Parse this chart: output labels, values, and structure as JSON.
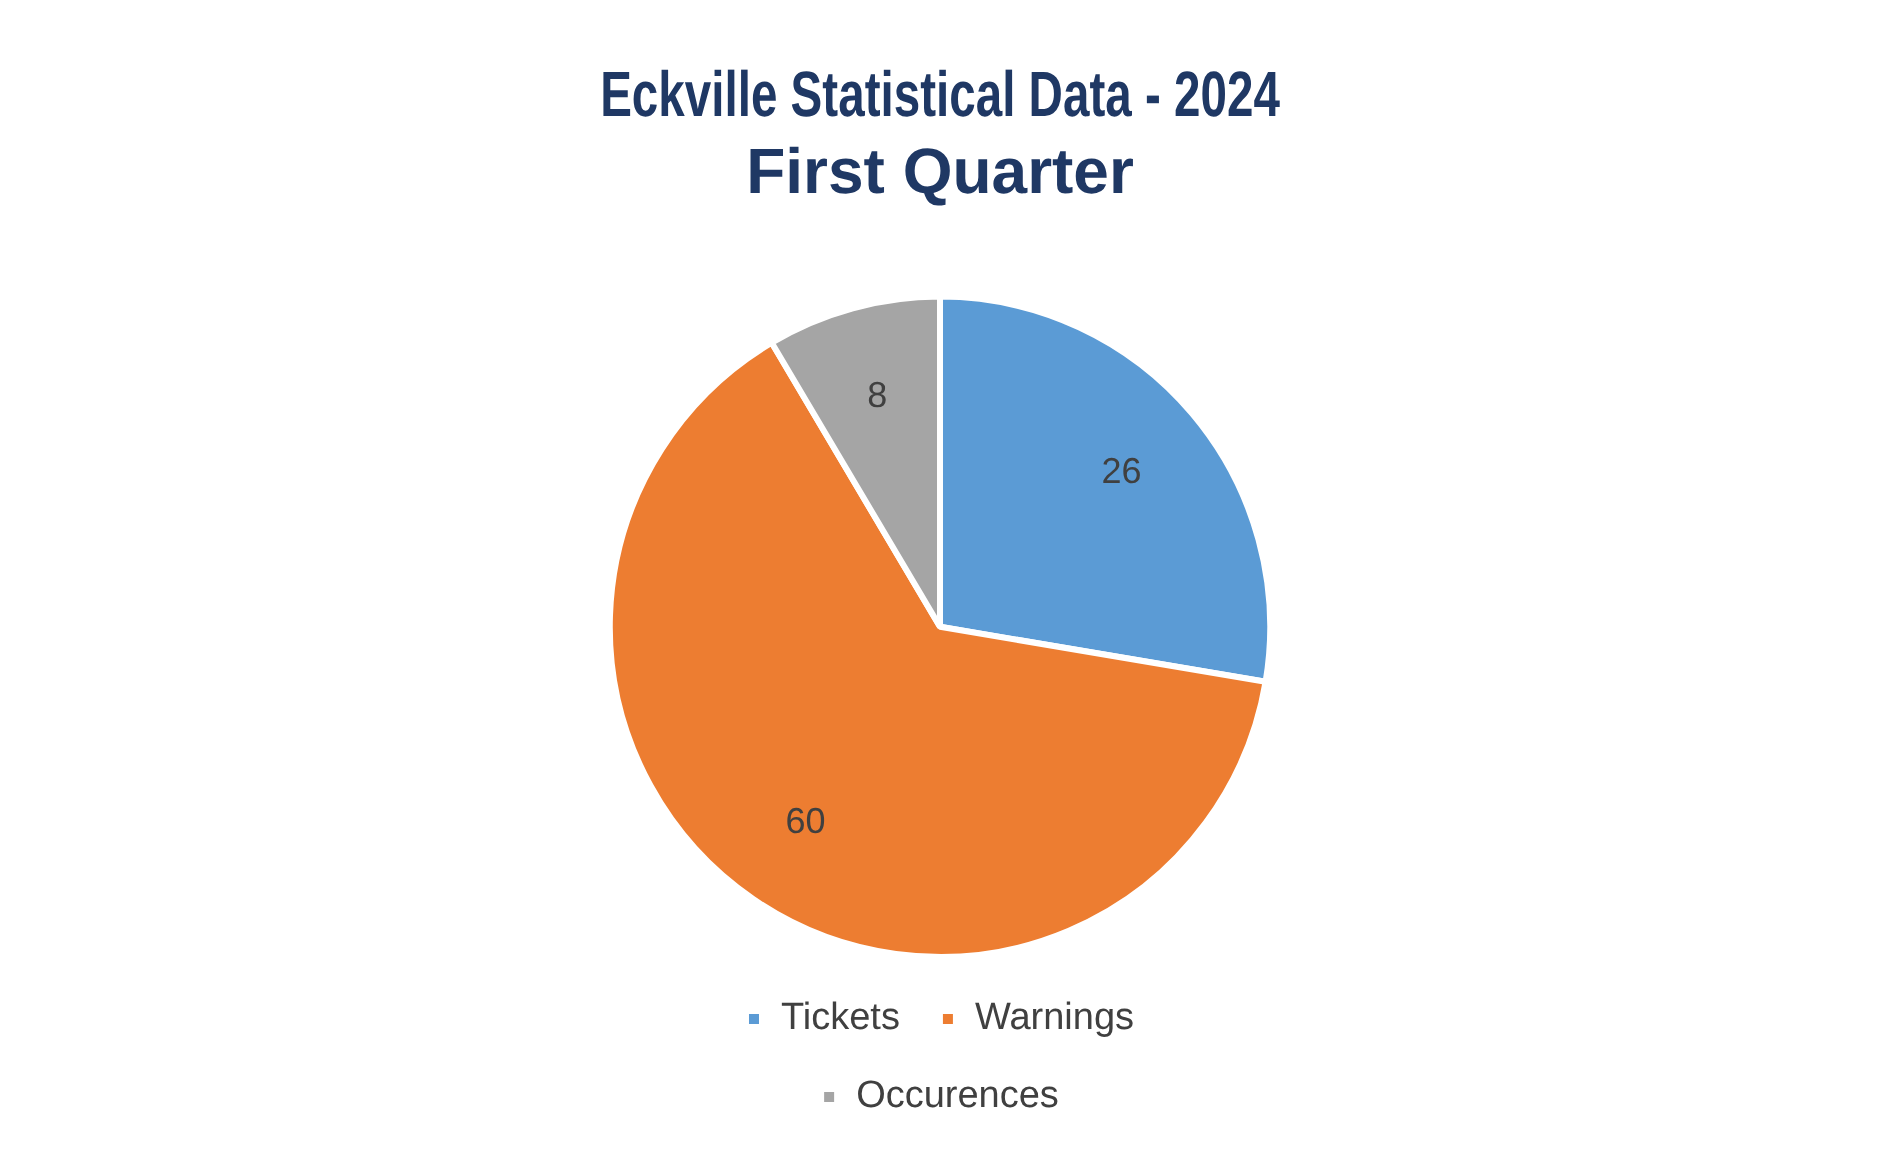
{
  "chart_data": {
    "type": "pie",
    "title": "Eckville Statistical Data - 2024\nFirst Quarter",
    "categories": [
      "Tickets",
      "Warnings",
      "Occurences"
    ],
    "values": [
      26,
      60,
      8
    ],
    "colors": [
      "#5b9bd5",
      "#ed7d31",
      "#a5a5a5"
    ],
    "data_labels": true,
    "legend": "bottom"
  }
}
